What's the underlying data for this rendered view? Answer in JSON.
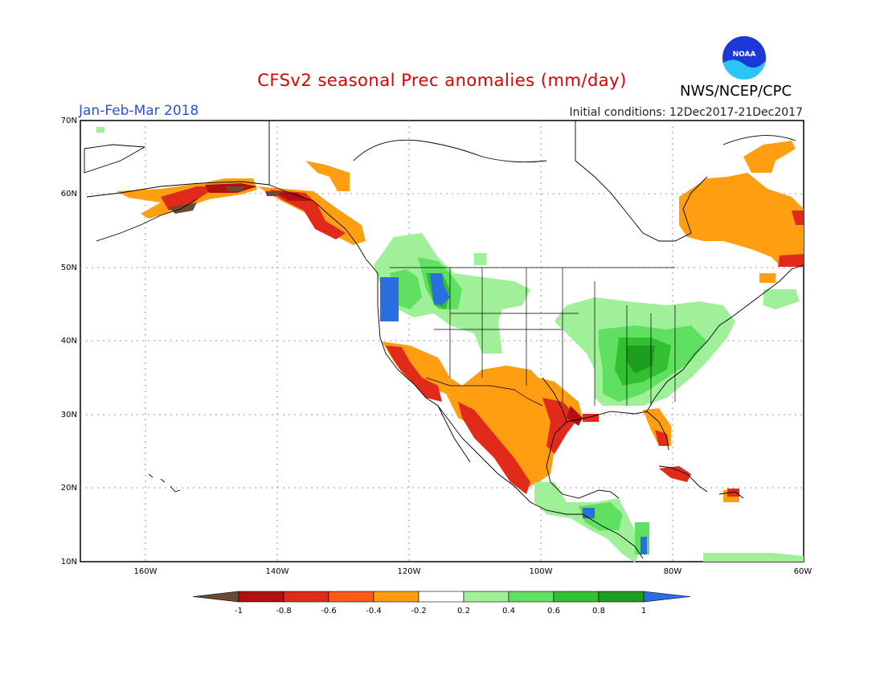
{
  "header": {
    "title": "CFSv2 seasonal Prec anomalies (mm/day)",
    "period": "Jan-Feb-Mar 2018",
    "initial_conditions": "Initial conditions: 12Dec2017-21Dec2017",
    "agency": "NWS/NCEP/CPC",
    "logo_text": "NOAA"
  },
  "map": {
    "lat_labels": [
      "70N",
      "60N",
      "50N",
      "40N",
      "30N",
      "20N",
      "10N"
    ],
    "lon_labels": [
      "160W",
      "140W",
      "120W",
      "100W",
      "80W",
      "60W"
    ]
  },
  "colorbar": {
    "labels": [
      "-1",
      "-0.8",
      "-0.6",
      "-0.4",
      "-0.2",
      "0.2",
      "0.4",
      "0.6",
      "0.8",
      "1"
    ],
    "colors": [
      "#6b4a35",
      "#b01010",
      "#e02b1b",
      "#ff5a1a",
      "#ff9e10",
      "#ffffff",
      "#a0f09a",
      "#5fe060",
      "#32bf30",
      "#1e9e1e",
      "#2a6ee0"
    ]
  }
}
